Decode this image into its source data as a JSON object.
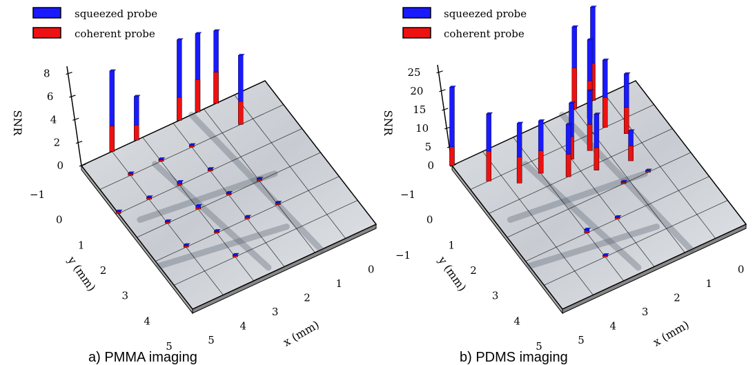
{
  "legend": {
    "squeezed_label": "squeezed probe",
    "coherent_label": "coherent probe",
    "squeezed_color": "#1a1aff",
    "coherent_color": "#ee1111"
  },
  "chart_data": [
    {
      "type": "bar3d",
      "caption": "a) PMMA imaging",
      "zlabel": "SNR",
      "xlabel": "x (mm)",
      "ylabel": "y (mm)",
      "z_ticks": [
        "0",
        "2",
        "4",
        "6",
        "8"
      ],
      "zlim": [
        0,
        8
      ],
      "x_ticks": [
        "5",
        "4",
        "3",
        "2",
        "1",
        "0",
        "−1"
      ],
      "y_ticks": [
        "−1",
        "0",
        "1",
        "2",
        "3",
        "4",
        "5"
      ],
      "xlim": [
        -1,
        5
      ],
      "ylim": [
        -1,
        5
      ],
      "colors": {
        "squeezed": "#1a1aff",
        "coherent": "#ee1111"
      },
      "bars": [
        {
          "x": 0,
          "y": -1,
          "squeezed": 7.0,
          "coherent": 2.2
        },
        {
          "x": 0.8,
          "y": -1,
          "squeezed": 3.8,
          "coherent": 1.3
        },
        {
          "x": 2.2,
          "y": -1,
          "squeezed": 7.0,
          "coherent": 2.0
        },
        {
          "x": 2.8,
          "y": -1,
          "squeezed": 6.8,
          "coherent": 2.8
        },
        {
          "x": 3.4,
          "y": -1,
          "squeezed": 6.3,
          "coherent": 2.7
        },
        {
          "x": 3.6,
          "y": 0,
          "squeezed": 6.0,
          "coherent": 2.0
        },
        {
          "x": 0,
          "y": 0,
          "squeezed": 0.2,
          "coherent": 0.1
        },
        {
          "x": 1,
          "y": 0,
          "squeezed": 0.2,
          "coherent": 0.1
        },
        {
          "x": 2,
          "y": 0,
          "squeezed": 0.2,
          "coherent": 0.1
        },
        {
          "x": -1,
          "y": 1,
          "squeezed": 0.2,
          "coherent": 0.1
        },
        {
          "x": 0,
          "y": 1,
          "squeezed": 0.2,
          "coherent": 0.1
        },
        {
          "x": 1,
          "y": 1,
          "squeezed": 0.3,
          "coherent": 0.1
        },
        {
          "x": 2,
          "y": 1,
          "squeezed": 0.2,
          "coherent": 0.1
        },
        {
          "x": 0,
          "y": 2,
          "squeezed": 0.2,
          "coherent": 0.1
        },
        {
          "x": 1,
          "y": 2,
          "squeezed": 0.3,
          "coherent": 0.1
        },
        {
          "x": 2,
          "y": 2,
          "squeezed": 0.2,
          "coherent": 0.1
        },
        {
          "x": 3,
          "y": 2,
          "squeezed": 0.2,
          "coherent": 0.1
        },
        {
          "x": 0,
          "y": 3,
          "squeezed": 0.2,
          "coherent": 0.1
        },
        {
          "x": 1,
          "y": 3,
          "squeezed": 0.2,
          "coherent": 0.1
        },
        {
          "x": 2,
          "y": 3,
          "squeezed": 0.2,
          "coherent": 0.1
        },
        {
          "x": 3,
          "y": 3,
          "squeezed": 0.2,
          "coherent": 0.1
        },
        {
          "x": 1,
          "y": 4,
          "squeezed": 0.2,
          "coherent": 0.1
        }
      ]
    },
    {
      "type": "bar3d",
      "caption": "b) PDMS imaging",
      "zlabel": "SNR",
      "xlabel": "x (mm)",
      "ylabel": "y (mm)",
      "z_ticks": [
        "0",
        "5",
        "10",
        "15",
        "20",
        "25"
      ],
      "zlim": [
        0,
        25
      ],
      "x_ticks": [
        "5",
        "4",
        "3",
        "2",
        "1",
        "0",
        "−1"
      ],
      "y_ticks": [
        "−1",
        "0",
        "1",
        "2",
        "3",
        "4",
        "5"
      ],
      "xlim": [
        -1,
        5
      ],
      "ylim": [
        -1,
        5
      ],
      "colors": {
        "squeezed": "#1a1aff",
        "coherent": "#ee1111"
      },
      "bars": [
        {
          "x": -1,
          "y": -1,
          "squeezed": 21.0,
          "coherent": 5.0
        },
        {
          "x": 3,
          "y": -1,
          "squeezed": 22.0,
          "coherent": 11.0
        },
        {
          "x": 3.6,
          "y": -1,
          "squeezed": 25.0,
          "coherent": 10.0
        },
        {
          "x": 3.2,
          "y": -0.5,
          "squeezed": 21.0,
          "coherent": 10.0
        },
        {
          "x": 3.4,
          "y": 0,
          "squeezed": 18.0,
          "coherent": 8.0
        },
        {
          "x": 3.8,
          "y": 0.5,
          "squeezed": 16.0,
          "coherent": 7.0
        },
        {
          "x": -0.4,
          "y": 0,
          "squeezed": 18.0,
          "coherent": 8.0
        },
        {
          "x": 0.3,
          "y": 0.5,
          "squeezed": 16.0,
          "coherent": 7.0
        },
        {
          "x": 1,
          "y": 0.5,
          "squeezed": 14.0,
          "coherent": 6.0
        },
        {
          "x": 2,
          "y": 0.5,
          "squeezed": 15.0,
          "coherent": 6.0
        },
        {
          "x": 2.6,
          "y": 0.5,
          "squeezed": 16.0,
          "coherent": 7.0
        },
        {
          "x": 1.6,
          "y": 1,
          "squeezed": 14.0,
          "coherent": 6.0
        },
        {
          "x": 2.4,
          "y": 1.2,
          "squeezed": 15.0,
          "coherent": 6.0
        },
        {
          "x": 3.4,
          "y": 1.4,
          "squeezed": 8.0,
          "coherent": 4.0
        },
        {
          "x": 2.8,
          "y": 2,
          "squeezed": 0.5,
          "coherent": 0.3
        },
        {
          "x": 3.6,
          "y": 2,
          "squeezed": 0.5,
          "coherent": 0.3
        },
        {
          "x": 1,
          "y": 3,
          "squeezed": 1.0,
          "coherent": 0.5
        },
        {
          "x": 2,
          "y": 3,
          "squeezed": 0.3,
          "coherent": 0.1
        },
        {
          "x": 1,
          "y": 4,
          "squeezed": 0.5,
          "coherent": 0.2
        }
      ]
    }
  ]
}
